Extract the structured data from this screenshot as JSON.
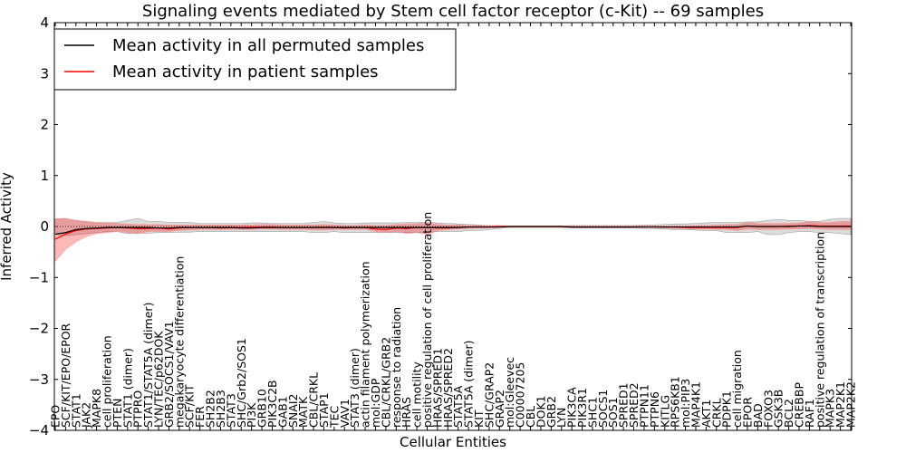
{
  "chart_data": {
    "type": "line",
    "title": "Signaling events mediated by Stem cell factor receptor (c-Kit) -- 69 samples",
    "xlabel": "Cellular Entities",
    "ylabel": "Inferred Activity",
    "ylim": [
      -4,
      4
    ],
    "yticks": [
      "4",
      "3",
      "2",
      "1",
      "0",
      "−1",
      "−2",
      "−3",
      "−4"
    ],
    "legend_position": "upper-left",
    "categories": [
      "EPO",
      "SCF/KIT/EPO/EPOR",
      "STAT1",
      "JAK2",
      "MAPK8",
      "cell proliferation",
      "PTEN",
      "STAT1 (dimer)",
      "PTPRO",
      "STAT1/STAT5A (dimer)",
      "LYN/TEC/p62DOK",
      "GRB2/SOCS1/VAV1",
      "megakaryocyte differentiation",
      "SCF/KIT",
      "FER",
      "SH2B2",
      "SH2B3",
      "STAT3",
      "SHC/Grb2/SOS1",
      "PI3K",
      "GRB10",
      "PIK3C2B",
      "GAB1",
      "SNAI2",
      "MATK",
      "CBL/CRKL",
      "STAP1",
      "TEC",
      "VAV1",
      "STAT3 (dimer)",
      "actin filament polymerization",
      "mol:GDP",
      "CBL/CRKL/GRB2",
      "response to radiation",
      "HRAS",
      "cell motility",
      "positive regulation of cell proliferation",
      "HRAS/SPRED1",
      "HRAS/SPRED2",
      "STAT5A",
      "STAT5A (dimer)",
      "KIT",
      "SHC/GRAP2",
      "GRAP2",
      "mol:Gleevec",
      "C00007205",
      "CBL",
      "DOK1",
      "GRB2",
      "LYN",
      "PIK3CA",
      "PIK3R1",
      "SHC1",
      "SOCS1",
      "SOS1",
      "SPRED1",
      "SPRED2",
      "PTPN11",
      "PTPN6",
      "KITLG",
      "RPS6KB1",
      "mol:PIP3",
      "MAP4K1",
      "AKT1",
      "CRKL",
      "PDPK1",
      "cell migration",
      "EPOR",
      "BAD",
      "FOXO3",
      "GSK3B",
      "BCL2",
      "CREBBP",
      "RAF1",
      "positive regulation of transcription",
      "MAPK3",
      "MAP2K1",
      "MAP2K2"
    ],
    "series": [
      {
        "name": "Mean activity in all permuted samples",
        "color": "#000000",
        "values": [
          -0.15,
          -0.12,
          -0.06,
          -0.04,
          -0.03,
          -0.02,
          -0.02,
          -0.02,
          -0.02,
          -0.02,
          -0.03,
          -0.03,
          -0.02,
          -0.02,
          -0.02,
          -0.02,
          -0.02,
          -0.02,
          -0.03,
          -0.03,
          -0.02,
          -0.02,
          -0.02,
          -0.02,
          -0.02,
          -0.02,
          -0.02,
          -0.02,
          -0.02,
          -0.02,
          -0.02,
          -0.02,
          -0.02,
          -0.02,
          -0.02,
          -0.02,
          -0.02,
          -0.02,
          -0.02,
          -0.02,
          -0.01,
          -0.01,
          -0.01,
          -0.01,
          0.0,
          0.0,
          0.0,
          0.0,
          0.0,
          0.0,
          -0.01,
          -0.01,
          -0.01,
          -0.01,
          -0.01,
          -0.01,
          -0.01,
          -0.01,
          -0.01,
          -0.01,
          -0.01,
          -0.01,
          -0.01,
          -0.01,
          -0.01,
          -0.01,
          -0.01,
          0.01,
          0.0,
          0.0,
          0.0,
          0.0,
          0.01,
          0.01,
          0.0,
          0.0,
          0.0,
          0.0
        ],
        "lower": [
          -0.15,
          -0.18,
          -0.16,
          -0.14,
          -0.12,
          -0.1,
          -0.1,
          -0.14,
          -0.13,
          -0.13,
          -0.12,
          -0.12,
          -0.11,
          -0.11,
          -0.1,
          -0.1,
          -0.1,
          -0.1,
          -0.1,
          -0.1,
          -0.1,
          -0.1,
          -0.1,
          -0.1,
          -0.1,
          -0.12,
          -0.12,
          -0.1,
          -0.12,
          -0.12,
          -0.12,
          -0.12,
          -0.12,
          -0.12,
          -0.12,
          -0.12,
          -0.12,
          -0.1,
          -0.1,
          -0.1,
          -0.08,
          -0.08,
          -0.06,
          -0.04,
          -0.02,
          -0.02,
          -0.02,
          -0.02,
          -0.02,
          -0.02,
          -0.03,
          -0.03,
          -0.03,
          -0.03,
          -0.03,
          -0.03,
          -0.03,
          -0.04,
          -0.04,
          -0.05,
          -0.06,
          -0.06,
          -0.07,
          -0.08,
          -0.08,
          -0.12,
          -0.12,
          -0.12,
          -0.1,
          -0.16,
          -0.16,
          -0.12,
          -0.1,
          -0.1,
          -0.12,
          -0.12,
          -0.14,
          -0.16
        ],
        "upper": [
          0.15,
          0.16,
          0.12,
          0.1,
          0.08,
          0.08,
          0.08,
          0.12,
          0.16,
          0.1,
          0.1,
          0.08,
          0.08,
          0.08,
          0.06,
          0.06,
          0.06,
          0.06,
          0.06,
          0.07,
          0.07,
          0.06,
          0.06,
          0.06,
          0.06,
          0.08,
          0.1,
          0.07,
          0.06,
          0.06,
          0.07,
          0.07,
          0.07,
          0.07,
          0.08,
          0.08,
          0.08,
          0.07,
          0.06,
          0.05,
          0.04,
          0.03,
          0.02,
          0.02,
          0.01,
          0.01,
          0.01,
          0.01,
          0.01,
          0.01,
          0.02,
          0.02,
          0.02,
          0.02,
          0.02,
          0.02,
          0.02,
          0.03,
          0.03,
          0.04,
          0.05,
          0.05,
          0.06,
          0.07,
          0.08,
          0.08,
          0.08,
          0.09,
          0.09,
          0.12,
          0.14,
          0.12,
          0.12,
          0.1,
          0.1,
          0.14,
          0.16,
          0.16
        ]
      },
      {
        "name": "Mean activity in patient samples",
        "color": "#ff0000",
        "values": [
          -0.25,
          -0.15,
          -0.08,
          -0.05,
          -0.04,
          -0.03,
          -0.02,
          -0.03,
          -0.04,
          -0.04,
          -0.03,
          -0.05,
          -0.03,
          -0.02,
          -0.02,
          -0.02,
          -0.03,
          -0.02,
          -0.02,
          -0.01,
          -0.01,
          -0.01,
          -0.02,
          -0.02,
          -0.02,
          -0.02,
          -0.01,
          -0.02,
          -0.03,
          -0.02,
          -0.02,
          -0.05,
          -0.06,
          -0.03,
          -0.04,
          -0.02,
          -0.02,
          -0.03,
          -0.03,
          -0.02,
          -0.01,
          -0.01,
          -0.01,
          0.0,
          0.0,
          0.0,
          0.0,
          0.0,
          0.0,
          0.0,
          -0.01,
          -0.01,
          -0.01,
          -0.01,
          -0.01,
          -0.01,
          -0.01,
          -0.01,
          -0.01,
          -0.01,
          -0.01,
          -0.02,
          -0.02,
          -0.02,
          -0.02,
          -0.02,
          -0.02,
          0.01,
          0.0,
          0.0,
          0.0,
          0.01,
          0.01,
          0.02,
          0.01,
          0.01,
          0.01,
          0.01
        ],
        "lower": [
          -0.68,
          -0.45,
          -0.3,
          -0.2,
          -0.14,
          -0.12,
          -0.1,
          -0.12,
          -0.14,
          -0.1,
          -0.1,
          -0.1,
          -0.08,
          -0.07,
          -0.06,
          -0.06,
          -0.06,
          -0.06,
          -0.06,
          -0.06,
          -0.05,
          -0.05,
          -0.06,
          -0.06,
          -0.06,
          -0.07,
          -0.07,
          -0.06,
          -0.06,
          -0.06,
          -0.06,
          -0.1,
          -0.12,
          -0.1,
          -0.14,
          -0.12,
          -0.16,
          -0.08,
          -0.06,
          -0.05,
          -0.04,
          -0.03,
          -0.03,
          -0.02,
          -0.01,
          -0.01,
          -0.01,
          -0.01,
          -0.01,
          -0.01,
          -0.02,
          -0.02,
          -0.02,
          -0.02,
          -0.02,
          -0.02,
          -0.02,
          -0.02,
          -0.02,
          -0.03,
          -0.04,
          -0.04,
          -0.05,
          -0.05,
          -0.06,
          -0.06,
          -0.08,
          -0.05,
          -0.06,
          -0.06,
          -0.06,
          -0.05,
          -0.05,
          -0.04,
          -0.05,
          -0.06,
          -0.06,
          -0.06
        ],
        "upper": [
          0.15,
          0.16,
          0.12,
          0.1,
          0.08,
          0.07,
          0.06,
          0.05,
          0.04,
          0.04,
          0.04,
          0.03,
          0.03,
          0.03,
          0.03,
          0.03,
          0.03,
          0.03,
          0.03,
          0.03,
          0.04,
          0.04,
          0.03,
          0.03,
          0.03,
          0.03,
          0.04,
          0.03,
          0.02,
          0.02,
          0.03,
          0.02,
          0.02,
          0.04,
          0.05,
          0.06,
          0.08,
          0.04,
          0.03,
          0.03,
          0.02,
          0.02,
          0.02,
          0.01,
          0.01,
          0.01,
          0.01,
          0.01,
          0.01,
          0.01,
          0.01,
          0.01,
          0.01,
          0.01,
          0.01,
          0.01,
          0.01,
          0.01,
          0.01,
          0.01,
          0.01,
          0.01,
          0.02,
          0.02,
          0.03,
          0.04,
          0.04,
          0.08,
          0.06,
          0.06,
          0.06,
          0.06,
          0.07,
          0.1,
          0.08,
          0.08,
          0.1,
          0.1
        ]
      }
    ]
  }
}
